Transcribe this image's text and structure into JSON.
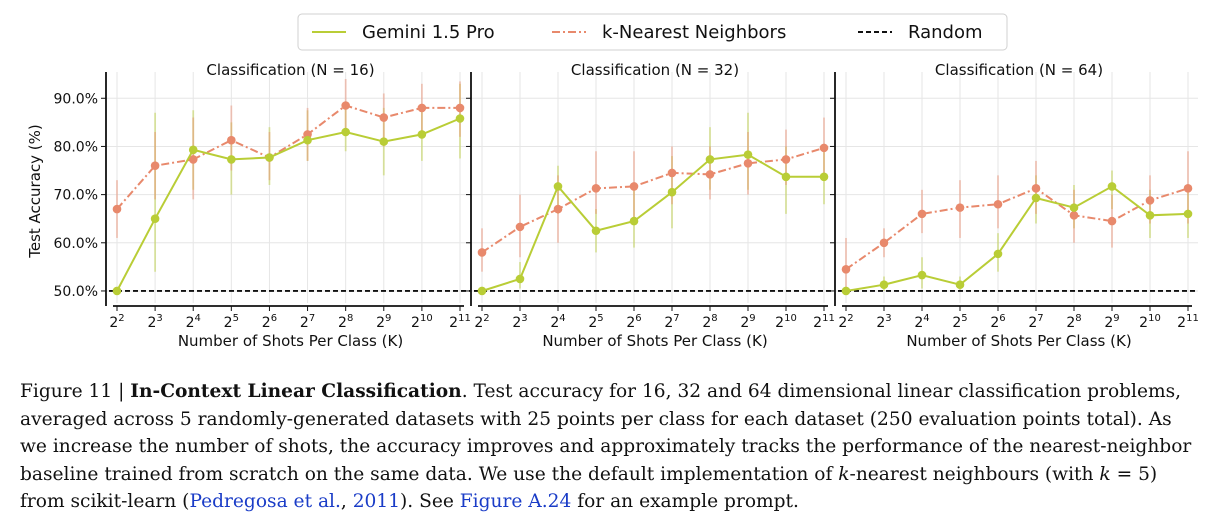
{
  "chart_data": [
    {
      "type": "line",
      "title": "Classification (N = 16)",
      "xlabel": "Number of Shots Per Class (K)",
      "ylabel": "Test Accuracy (%)",
      "x": [
        2,
        3,
        4,
        5,
        6,
        7,
        8,
        9,
        10,
        11
      ],
      "x_tick_labels": [
        {
          "base": "2",
          "exp": "2"
        },
        {
          "base": "2",
          "exp": "3"
        },
        {
          "base": "2",
          "exp": "4"
        },
        {
          "base": "2",
          "exp": "5"
        },
        {
          "base": "2",
          "exp": "6"
        },
        {
          "base": "2",
          "exp": "7"
        },
        {
          "base": "2",
          "exp": "8"
        },
        {
          "base": "2",
          "exp": "9"
        },
        {
          "base": "2",
          "exp": "10"
        },
        {
          "base": "2",
          "exp": "11"
        }
      ],
      "x_scale": "log2",
      "ylim": [
        47.5,
        94
      ],
      "y_ticks": [
        50,
        60,
        70,
        80,
        90
      ],
      "y_tick_labels": [
        "50.0%",
        "60.0%",
        "70.0%",
        "80.0%",
        "90.0%"
      ],
      "grid": true,
      "series": [
        {
          "name": "Gemini 1.5 Pro",
          "color": "#b9cd36",
          "style": "solid",
          "values": [
            50.0,
            65.0,
            79.3,
            77.3,
            77.7,
            81.3,
            83.0,
            81.0,
            82.5,
            85.8
          ],
          "err_low": [
            50.0,
            54.0,
            71.0,
            70.0,
            72.0,
            77.0,
            79.0,
            74.0,
            77.0,
            77.5
          ],
          "err_high": [
            50.0,
            87.0,
            87.5,
            85.0,
            84.0,
            87.5,
            88.0,
            88.0,
            88.0,
            93.0
          ]
        },
        {
          "name": "k-Nearest Neighbors",
          "color": "#e8896c",
          "style": "dashdot",
          "values": [
            67.0,
            76.0,
            77.3,
            81.3,
            77.7,
            82.5,
            88.5,
            86.0,
            88.0,
            88.0
          ],
          "err_low": [
            61.0,
            69.0,
            69.0,
            75.0,
            73.0,
            77.0,
            83.0,
            80.0,
            82.0,
            82.0
          ],
          "err_high": [
            73.0,
            83.0,
            86.0,
            88.5,
            83.0,
            88.0,
            94.0,
            91.0,
            93.0,
            93.5
          ]
        },
        {
          "name": "Random",
          "color": "#111111",
          "style": "dashed",
          "values": [
            50,
            50,
            50,
            50,
            50,
            50,
            50,
            50,
            50,
            50
          ]
        }
      ]
    },
    {
      "type": "line",
      "title": "Classification (N = 32)",
      "xlabel": "Number of Shots Per Class (K)",
      "ylabel": "",
      "x": [
        2,
        3,
        4,
        5,
        6,
        7,
        8,
        9,
        10,
        11
      ],
      "x_tick_labels": [
        {
          "base": "2",
          "exp": "2"
        },
        {
          "base": "2",
          "exp": "3"
        },
        {
          "base": "2",
          "exp": "4"
        },
        {
          "base": "2",
          "exp": "5"
        },
        {
          "base": "2",
          "exp": "6"
        },
        {
          "base": "2",
          "exp": "7"
        },
        {
          "base": "2",
          "exp": "8"
        },
        {
          "base": "2",
          "exp": "9"
        },
        {
          "base": "2",
          "exp": "10"
        },
        {
          "base": "2",
          "exp": "11"
        }
      ],
      "x_scale": "log2",
      "ylim": [
        47.5,
        94
      ],
      "y_ticks": [
        50,
        60,
        70,
        80,
        90
      ],
      "y_tick_labels": [],
      "grid": true,
      "series": [
        {
          "name": "Gemini 1.5 Pro",
          "color": "#b9cd36",
          "style": "solid",
          "values": [
            50.0,
            52.5,
            71.7,
            62.5,
            64.5,
            70.5,
            77.3,
            78.3,
            73.7,
            73.7
          ],
          "err_low": [
            50.0,
            50.5,
            66.0,
            58.0,
            59.0,
            63.0,
            71.0,
            71.0,
            66.0,
            68.0
          ],
          "err_high": [
            50.0,
            56.0,
            76.0,
            67.0,
            71.0,
            78.0,
            84.0,
            87.0,
            80.0,
            79.0
          ]
        },
        {
          "name": "k-Nearest Neighbors",
          "color": "#e8896c",
          "style": "dashdot",
          "values": [
            58.0,
            63.3,
            67.0,
            71.3,
            71.7,
            74.5,
            74.2,
            76.5,
            77.3,
            79.7
          ],
          "err_low": [
            54.0,
            57.0,
            60.0,
            66.0,
            65.0,
            68.0,
            69.0,
            70.0,
            72.0,
            74.0
          ],
          "err_high": [
            63.0,
            70.0,
            74.0,
            79.0,
            79.0,
            80.0,
            80.0,
            83.0,
            83.5,
            86.0
          ]
        },
        {
          "name": "Random",
          "color": "#111111",
          "style": "dashed",
          "values": [
            50,
            50,
            50,
            50,
            50,
            50,
            50,
            50,
            50,
            50
          ]
        }
      ]
    },
    {
      "type": "line",
      "title": "Classification (N = 64)",
      "xlabel": "Number of Shots Per Class (K)",
      "ylabel": "",
      "x": [
        2,
        3,
        4,
        5,
        6,
        7,
        8,
        9,
        10,
        11
      ],
      "x_tick_labels": [
        {
          "base": "2",
          "exp": "2"
        },
        {
          "base": "2",
          "exp": "3"
        },
        {
          "base": "2",
          "exp": "4"
        },
        {
          "base": "2",
          "exp": "5"
        },
        {
          "base": "2",
          "exp": "6"
        },
        {
          "base": "2",
          "exp": "7"
        },
        {
          "base": "2",
          "exp": "8"
        },
        {
          "base": "2",
          "exp": "9"
        },
        {
          "base": "2",
          "exp": "10"
        },
        {
          "base": "2",
          "exp": "11"
        }
      ],
      "x_scale": "log2",
      "ylim": [
        47.5,
        94
      ],
      "y_ticks": [
        50,
        60,
        70,
        80,
        90
      ],
      "y_tick_labels": [],
      "grid": true,
      "series": [
        {
          "name": "Gemini 1.5 Pro",
          "color": "#b9cd36",
          "style": "solid",
          "values": [
            50.0,
            51.3,
            53.3,
            51.3,
            57.7,
            69.3,
            67.3,
            71.7,
            65.7,
            66.0
          ],
          "err_low": [
            50.0,
            50.0,
            50.5,
            50.0,
            54.0,
            64.0,
            63.0,
            67.0,
            61.0,
            61.0
          ],
          "err_high": [
            50.0,
            53.0,
            57.0,
            53.0,
            62.0,
            74.0,
            72.0,
            75.0,
            71.0,
            71.0
          ]
        },
        {
          "name": "k-Nearest Neighbors",
          "color": "#e8896c",
          "style": "dashdot",
          "values": [
            54.5,
            60.0,
            66.0,
            67.3,
            68.0,
            71.3,
            65.7,
            64.5,
            68.8,
            71.3
          ],
          "err_low": [
            50.0,
            57.0,
            62.0,
            61.0,
            63.0,
            66.0,
            60.0,
            59.0,
            64.0,
            64.0
          ],
          "err_high": [
            61.0,
            63.0,
            71.0,
            73.0,
            74.0,
            77.0,
            71.0,
            70.0,
            74.0,
            79.0
          ]
        },
        {
          "name": "Random",
          "color": "#111111",
          "style": "dashed",
          "values": [
            50,
            50,
            50,
            50,
            50,
            50,
            50,
            50,
            50,
            50
          ]
        }
      ]
    }
  ],
  "legend": {
    "placement": "top-center",
    "items": [
      {
        "label": "Gemini 1.5 Pro",
        "color": "#b9cd36",
        "style": "solid"
      },
      {
        "label": "k-Nearest Neighbors",
        "color": "#e8896c",
        "style": "dashdot"
      },
      {
        "label": "Random",
        "color": "#111111",
        "style": "dashed"
      }
    ]
  },
  "caption": {
    "label": "Figure 11 | ",
    "title": "In-Context Linear Classification",
    "text1": ". Test accuracy for 16, 32 and 64 dimensional linear classification problems, averaged across 5 randomly-generated datasets with 25 points per class for each dataset (250 evaluation points total). As we increase the number of shots, the accuracy improves and approximately tracks the performance of the nearest-neighbor baseline trained from scratch on the same data. We use the default implementation of ",
    "k1": "k",
    "text2": "-nearest neighbours (with ",
    "k2": "k",
    "text3": " = 5) from scikit-learn (",
    "cite_author": "Pedregosa et al.",
    "text4": ", ",
    "cite_year": "2011",
    "text5": "). See ",
    "figref": "Figure A.24",
    "text6": " for an example prompt."
  }
}
